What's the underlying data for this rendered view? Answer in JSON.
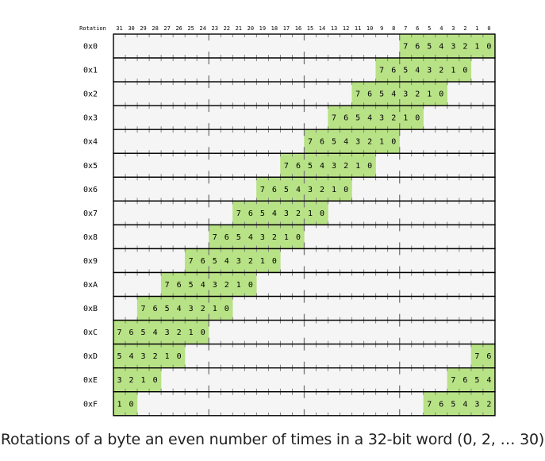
{
  "header": {
    "corner_label": "Rotation",
    "bit_labels": [
      "31",
      "30",
      "29",
      "28",
      "27",
      "26",
      "25",
      "24",
      "23",
      "22",
      "21",
      "20",
      "19",
      "18",
      "17",
      "16",
      "15",
      "14",
      "13",
      "12",
      "11",
      "10",
      "9",
      "8",
      "7",
      "6",
      "5",
      "4",
      "3",
      "2",
      "1",
      "0"
    ]
  },
  "rows": [
    {
      "label": "0x0",
      "rotation": 0
    },
    {
      "label": "0x1",
      "rotation": 2
    },
    {
      "label": "0x2",
      "rotation": 4
    },
    {
      "label": "0x3",
      "rotation": 6
    },
    {
      "label": "0x4",
      "rotation": 8
    },
    {
      "label": "0x5",
      "rotation": 10
    },
    {
      "label": "0x6",
      "rotation": 12
    },
    {
      "label": "0x7",
      "rotation": 14
    },
    {
      "label": "0x8",
      "rotation": 16
    },
    {
      "label": "0x9",
      "rotation": 18
    },
    {
      "label": "0xA",
      "rotation": 20
    },
    {
      "label": "0xB",
      "rotation": 22
    },
    {
      "label": "0xC",
      "rotation": 24
    },
    {
      "label": "0xD",
      "rotation": 26
    },
    {
      "label": "0xE",
      "rotation": 28
    },
    {
      "label": "0xF",
      "rotation": 30
    }
  ],
  "byte_bits": [
    "7",
    "6",
    "5",
    "4",
    "3",
    "2",
    "1",
    "0"
  ],
  "colors": {
    "byte_fill": "#b8e286",
    "word_fill": "#f5f5f5",
    "border": "#000000",
    "tick": "#777777"
  },
  "caption": "Rotations of a byte an even number of times in a 32-bit word (0, 2, … 30)"
}
